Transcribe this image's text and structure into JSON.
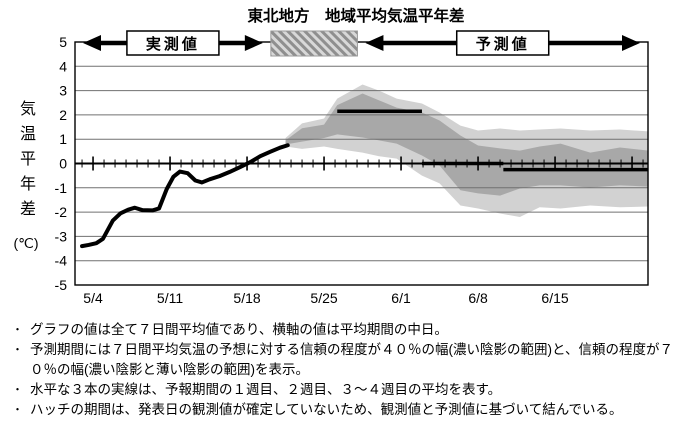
{
  "chart_data": {
    "type": "line",
    "title": "東北地方　地域平均気温平年差",
    "ylabel": "気温平年差(℃)",
    "ylim": [
      -5,
      5
    ],
    "y_ticks": [
      5,
      4,
      3,
      2,
      1,
      0,
      -1,
      -2,
      -3,
      -4,
      -5
    ],
    "x_range_days": [
      -1.64,
      50.45
    ],
    "x_tick_labels": [
      "5/4",
      "5/11",
      "5/18",
      "5/25",
      "6/1",
      "6/8",
      "6/15"
    ],
    "x_tick_days": [
      0,
      7,
      14,
      21,
      28,
      35,
      42
    ],
    "minor_tick_step_days": 1,
    "grid": true,
    "annotations": {
      "observed_period_label": "実測値",
      "forecast_period_label": "予測値"
    },
    "hatch_period_days": [
      16.8,
      23.4
    ],
    "observed": {
      "name": "実測値(7日間平均)",
      "x_days": [
        -1.0,
        -0.4,
        0.3,
        0.9,
        1.8,
        2.5,
        3.2,
        3.8,
        4.5,
        5.4,
        6.0,
        6.7,
        7.3,
        7.9,
        8.6,
        9.3,
        9.9,
        10.6,
        11.5,
        12.4,
        13.4,
        14.3,
        15.2,
        16.1,
        17.0,
        17.7
      ],
      "values": [
        -3.4,
        -3.35,
        -3.28,
        -3.1,
        -2.35,
        -2.05,
        -1.9,
        -1.82,
        -1.92,
        -1.93,
        -1.85,
        -1.05,
        -0.55,
        -0.33,
        -0.4,
        -0.7,
        -0.78,
        -0.65,
        -0.52,
        -0.35,
        -0.14,
        0.06,
        0.3,
        0.48,
        0.65,
        0.75
      ]
    },
    "forecast_bands": {
      "x_days": [
        17.5,
        19,
        21,
        22.2,
        24.5,
        26,
        27.6,
        29.9,
        31.5,
        33.4,
        35,
        37,
        38.8,
        40.6,
        42.5,
        45.2,
        47.9,
        50.5
      ],
      "hi70": [
        1.05,
        1.65,
        1.85,
        2.67,
        3.25,
        3.0,
        2.67,
        2.47,
        2.1,
        1.56,
        1.36,
        1.44,
        1.36,
        1.4,
        1.44,
        1.36,
        1.4,
        1.32
      ],
      "hi40": [
        0.95,
        1.45,
        1.6,
        2.4,
        2.88,
        2.6,
        2.3,
        2.1,
        1.77,
        1.15,
        0.74,
        0.62,
        0.53,
        0.7,
        0.82,
        0.45,
        0.66,
        0.53
      ],
      "lo40": [
        0.78,
        0.9,
        1.05,
        1.2,
        1.07,
        0.95,
        0.82,
        0.33,
        -0.08,
        -1.1,
        -1.23,
        -1.32,
        -1.03,
        -0.9,
        -0.9,
        -0.99,
        -0.9,
        -0.95
      ],
      "lo70": [
        0.7,
        0.6,
        0.7,
        0.6,
        0.45,
        0.3,
        0.2,
        -0.5,
        -0.82,
        -1.73,
        -1.85,
        -2.06,
        -2.2,
        -1.8,
        -1.85,
        -1.73,
        -1.8,
        -1.77
      ]
    },
    "week_mean_lines": [
      {
        "label": "1週目",
        "from_day": 22.2,
        "to_day": 29.9,
        "value": 2.15
      },
      {
        "label": "2週目",
        "from_day": 29.9,
        "to_day": 37.3,
        "value": 0.0
      },
      {
        "label": "3～4週目",
        "from_day": 37.3,
        "to_day": 50.45,
        "value": -0.25
      }
    ],
    "colors": {
      "observed_line": "#000000",
      "band40_dark": "#a8a8a8",
      "band70_light": "#d2d2d2",
      "grid": "#707070",
      "axis": "#000000",
      "hatch_stripe": "#8f8f8f",
      "hatch_bg": "#d8d8d8"
    }
  },
  "footer": {
    "bullets": [
      "グラフの値は全て７日間平均値であり、横軸の値は平均期間の中日。",
      "予測期間には７日間平均気温の予想に対する信頼の程度が４０％の幅(濃い陰影の範囲)と、信頼の程度が７０％の幅(濃い陰影と薄い陰影の範囲)を表示。",
      "水平な３本の実線は、予報期間の１週目、２週目、３～４週目の平均を表す。",
      "ハッチの期間は、発表日の観測値が確定していないため、観測値と予測値に基づいて結んでいる。"
    ]
  }
}
